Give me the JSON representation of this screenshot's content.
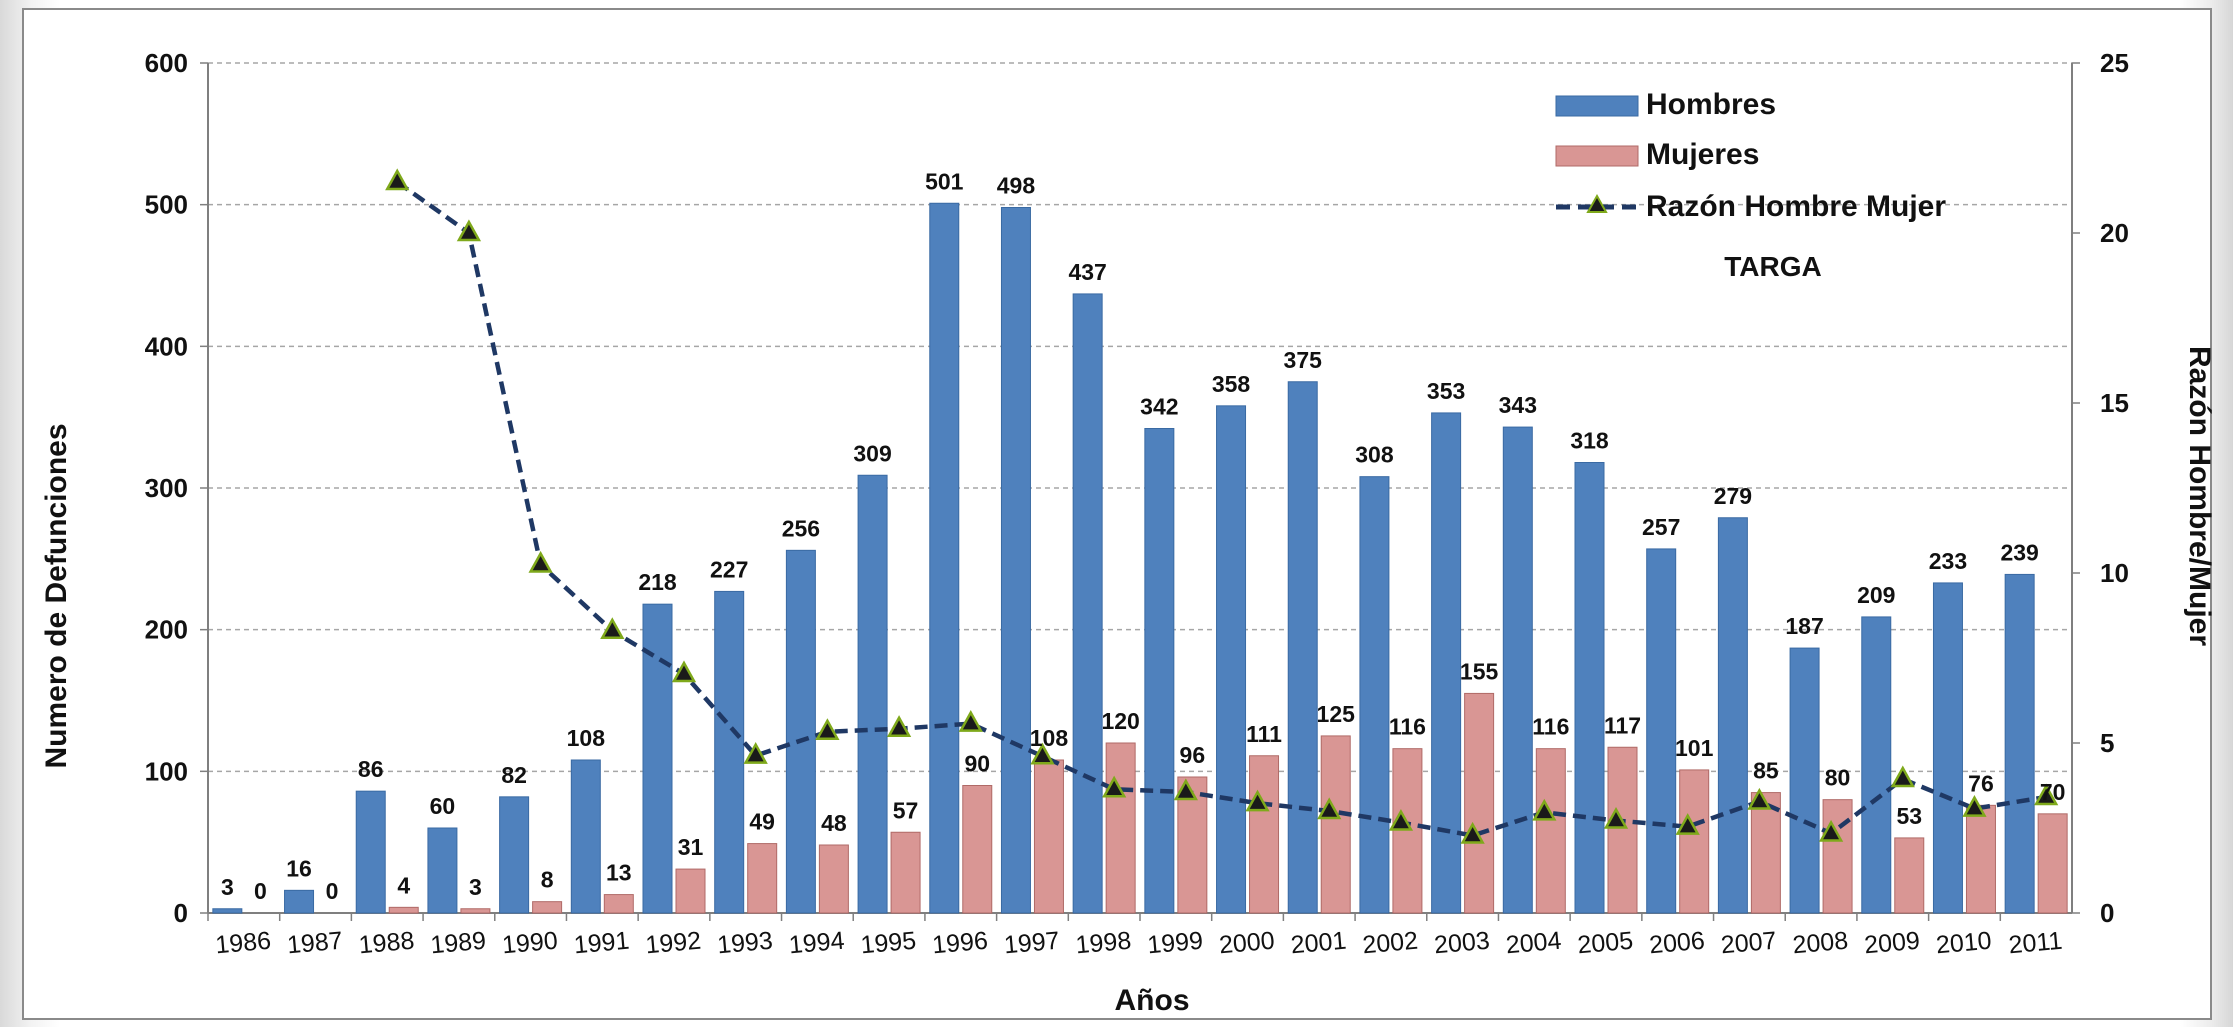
{
  "chart_data": {
    "type": "bar",
    "title": "",
    "annotation": "TARGA",
    "xlabel": "Años",
    "ylabel": "Numero de Defunciones",
    "y2label": "Razón Hombre/Mujer",
    "ylim": [
      0,
      600
    ],
    "y2lim": [
      0,
      25
    ],
    "yticks": [
      "0",
      "100",
      "200",
      "300",
      "400",
      "500",
      "600"
    ],
    "y2ticks": [
      "0",
      "5",
      "10",
      "15",
      "20",
      "25"
    ],
    "grid": true,
    "legend_position": "top-right",
    "categories": [
      "1986",
      "1987",
      "1988",
      "1989",
      "1990",
      "1991",
      "1992",
      "1993",
      "1994",
      "1995",
      "1996",
      "1997",
      "1998",
      "1999",
      "2000",
      "2001",
      "2002",
      "2003",
      "2004",
      "2005",
      "2006",
      "2007",
      "2008",
      "2009",
      "2010",
      "2011"
    ],
    "series": [
      {
        "name": "Hombres",
        "type": "bar",
        "color": "#4f81bd",
        "values": [
          3,
          16,
          86,
          60,
          82,
          108,
          218,
          227,
          256,
          309,
          501,
          498,
          437,
          342,
          358,
          375,
          308,
          353,
          343,
          318,
          257,
          279,
          187,
          209,
          233,
          239
        ]
      },
      {
        "name": "Mujeres",
        "type": "bar",
        "color": "#d99694",
        "values": [
          0,
          0,
          4,
          3,
          8,
          13,
          31,
          49,
          48,
          57,
          90,
          108,
          120,
          96,
          111,
          125,
          116,
          155,
          116,
          117,
          101,
          85,
          80,
          53,
          76,
          70
        ]
      },
      {
        "name": "Razón Hombre Mujer",
        "type": "line",
        "axis": "right",
        "color": "#1f3864",
        "marker_color": "#7fa91b",
        "values": [
          null,
          null,
          21.5,
          20,
          10.25,
          8.3,
          7.03,
          4.63,
          5.33,
          5.42,
          5.57,
          4.61,
          3.64,
          3.56,
          3.23,
          3,
          2.66,
          2.28,
          2.96,
          2.72,
          2.54,
          3.28,
          2.34,
          3.94,
          3.07,
          3.41
        ]
      }
    ]
  }
}
